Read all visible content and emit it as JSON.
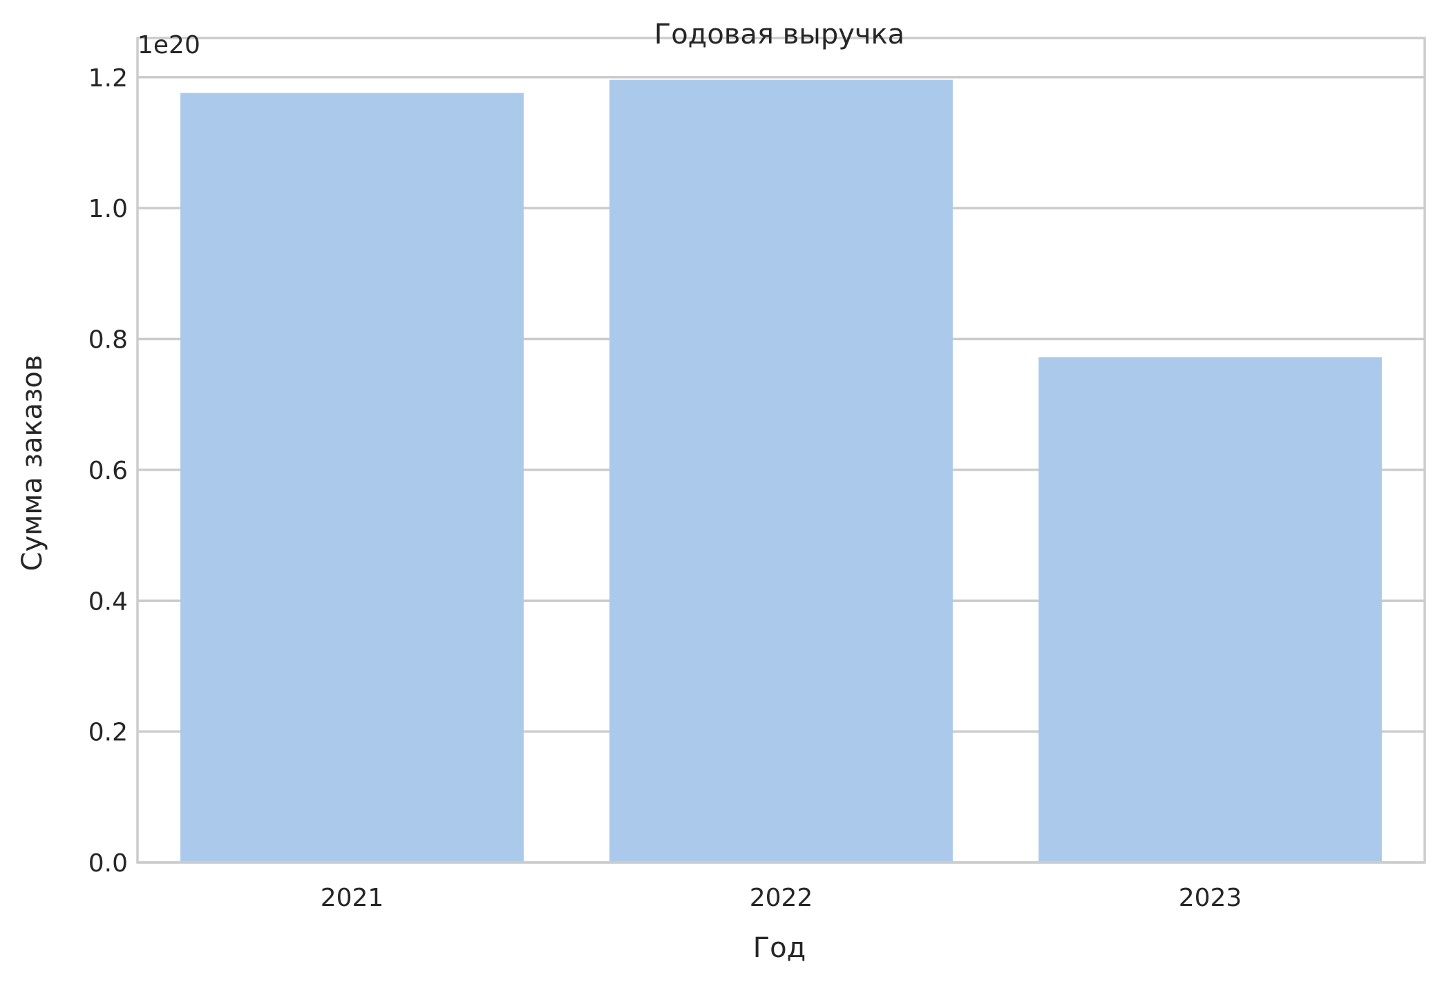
{
  "chart_data": {
    "type": "bar",
    "title": "Годовая выручка",
    "xlabel": "Год",
    "ylabel": "Сумма заказов",
    "y_offset_label": "1e20",
    "categories": [
      "2021",
      "2022",
      "2023"
    ],
    "values": [
      1.176e+20,
      1.196e+20,
      7.72e+19
    ],
    "y_scale_factor": 1e+20,
    "ylim": [
      0,
      1.26e+20
    ],
    "y_ticks": [
      0.0,
      0.2,
      0.4,
      0.6,
      0.8,
      1.0,
      1.2
    ],
    "y_tick_labels": [
      "0.0",
      "0.2",
      "0.4",
      "0.6",
      "0.8",
      "1.0",
      "1.2"
    ],
    "grid": "horizontal",
    "colors": {
      "bar": "#abc9eb",
      "grid": "#cccccc",
      "text": "#262626"
    }
  }
}
